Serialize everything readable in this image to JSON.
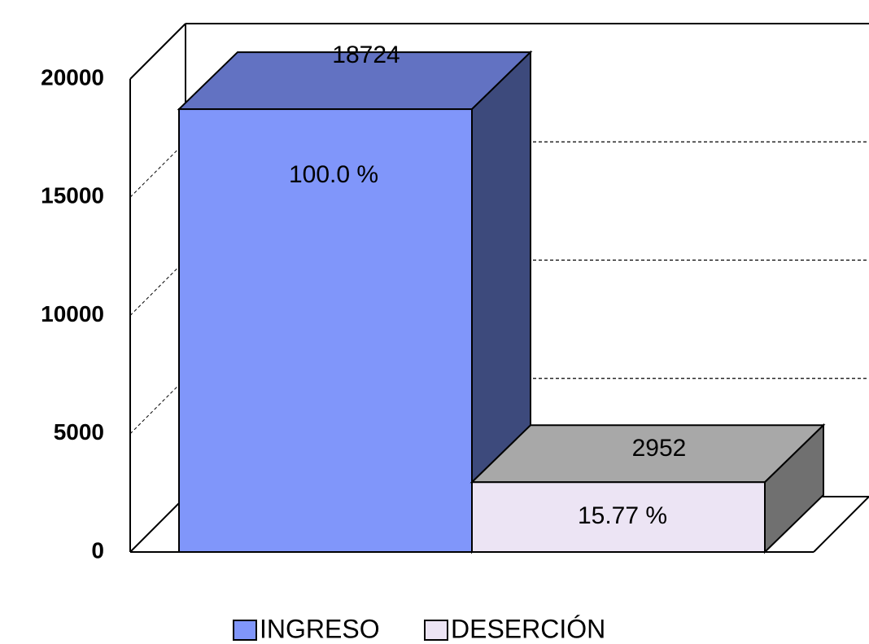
{
  "chart_data": {
    "type": "bar3d",
    "series": [
      {
        "name": "INGRESO",
        "color": "#8096fa",
        "top_color": "#6272c2",
        "side_color": "#3d4a7c",
        "values": [
          18724
        ],
        "share_labels": [
          "100.0 %"
        ]
      },
      {
        "name": "DESERCIÓN",
        "color": "#ece4f4",
        "top_color": "#a8a8a8",
        "side_color": "#707070",
        "values": [
          2952
        ],
        "share_labels": [
          "15.77 %"
        ]
      }
    ],
    "ylim": [
      0,
      20000
    ],
    "yticks": [
      0,
      5000,
      10000,
      15000,
      20000
    ],
    "grid": true,
    "legend": "bottom"
  }
}
